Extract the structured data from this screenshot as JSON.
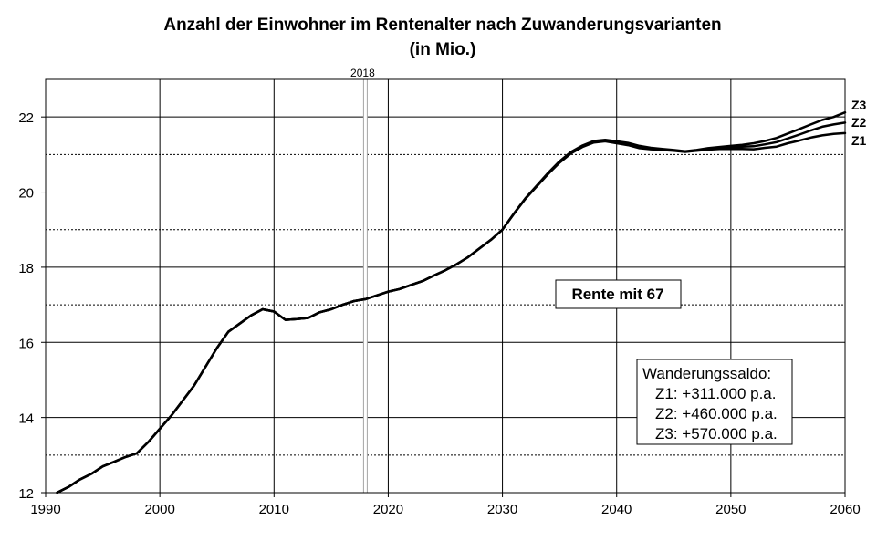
{
  "chart_data": {
    "type": "line",
    "title": "Anzahl der Einwohner im Rentenalter nach Zuwanderungsvarianten",
    "subtitle": "(in Mio.)",
    "xlim": [
      1990,
      2060
    ],
    "ylim": [
      12,
      23
    ],
    "x_ticks": [
      "1990",
      "2000",
      "2010",
      "2020",
      "2030",
      "2040",
      "2050",
      "2060"
    ],
    "y_ticks": [
      "12",
      "14",
      "16",
      "18",
      "20",
      "22"
    ],
    "grid": true,
    "marker": {
      "x": 2018,
      "label": "2018"
    },
    "series": [
      {
        "name": "Z1",
        "points": [
          [
            1991,
            12.0
          ],
          [
            1992,
            12.15
          ],
          [
            1993,
            12.35
          ],
          [
            1994,
            12.5
          ],
          [
            1995,
            12.7
          ],
          [
            1996,
            12.82
          ],
          [
            1997,
            12.95
          ],
          [
            1998,
            13.05
          ],
          [
            1999,
            13.35
          ],
          [
            2000,
            13.7
          ],
          [
            2001,
            14.05
          ],
          [
            2002,
            14.45
          ],
          [
            2003,
            14.85
          ],
          [
            2004,
            15.35
          ],
          [
            2005,
            15.85
          ],
          [
            2006,
            16.28
          ],
          [
            2007,
            16.5
          ],
          [
            2008,
            16.72
          ],
          [
            2009,
            16.88
          ],
          [
            2010,
            16.82
          ],
          [
            2011,
            16.6
          ],
          [
            2012,
            16.62
          ],
          [
            2013,
            16.65
          ],
          [
            2014,
            16.8
          ],
          [
            2015,
            16.88
          ],
          [
            2016,
            17.0
          ],
          [
            2017,
            17.1
          ],
          [
            2018,
            17.15
          ],
          [
            2019,
            17.25
          ],
          [
            2020,
            17.35
          ],
          [
            2021,
            17.42
          ],
          [
            2022,
            17.53
          ],
          [
            2023,
            17.63
          ],
          [
            2024,
            17.78
          ],
          [
            2025,
            17.92
          ],
          [
            2026,
            18.08
          ],
          [
            2027,
            18.27
          ],
          [
            2028,
            18.5
          ],
          [
            2029,
            18.73
          ],
          [
            2030,
            19.0
          ],
          [
            2031,
            19.42
          ],
          [
            2032,
            19.82
          ],
          [
            2033,
            20.15
          ],
          [
            2034,
            20.48
          ],
          [
            2035,
            20.78
          ],
          [
            2036,
            21.03
          ],
          [
            2037,
            21.2
          ],
          [
            2038,
            21.32
          ],
          [
            2039,
            21.35
          ],
          [
            2040,
            21.3
          ],
          [
            2041,
            21.25
          ],
          [
            2042,
            21.17
          ],
          [
            2043,
            21.14
          ],
          [
            2044,
            21.12
          ],
          [
            2045,
            21.1
          ],
          [
            2046,
            21.07
          ],
          [
            2047,
            21.1
          ],
          [
            2048,
            21.13
          ],
          [
            2049,
            21.15
          ],
          [
            2050,
            21.15
          ],
          [
            2051,
            21.15
          ],
          [
            2052,
            21.14
          ],
          [
            2053,
            21.18
          ],
          [
            2054,
            21.21
          ],
          [
            2055,
            21.3
          ],
          [
            2056,
            21.37
          ],
          [
            2057,
            21.45
          ],
          [
            2058,
            21.51
          ],
          [
            2059,
            21.55
          ],
          [
            2060,
            21.57
          ]
        ]
      },
      {
        "name": "Z2",
        "points": [
          [
            1991,
            12.0
          ],
          [
            1992,
            12.15
          ],
          [
            1993,
            12.35
          ],
          [
            1994,
            12.5
          ],
          [
            1995,
            12.7
          ],
          [
            1996,
            12.82
          ],
          [
            1997,
            12.95
          ],
          [
            1998,
            13.05
          ],
          [
            1999,
            13.35
          ],
          [
            2000,
            13.7
          ],
          [
            2001,
            14.05
          ],
          [
            2002,
            14.45
          ],
          [
            2003,
            14.85
          ],
          [
            2004,
            15.35
          ],
          [
            2005,
            15.85
          ],
          [
            2006,
            16.28
          ],
          [
            2007,
            16.5
          ],
          [
            2008,
            16.72
          ],
          [
            2009,
            16.88
          ],
          [
            2010,
            16.82
          ],
          [
            2011,
            16.6
          ],
          [
            2012,
            16.62
          ],
          [
            2013,
            16.65
          ],
          [
            2014,
            16.8
          ],
          [
            2015,
            16.88
          ],
          [
            2016,
            17.0
          ],
          [
            2017,
            17.1
          ],
          [
            2018,
            17.15
          ],
          [
            2019,
            17.25
          ],
          [
            2020,
            17.35
          ],
          [
            2021,
            17.42
          ],
          [
            2022,
            17.53
          ],
          [
            2023,
            17.63
          ],
          [
            2024,
            17.78
          ],
          [
            2025,
            17.92
          ],
          [
            2026,
            18.08
          ],
          [
            2027,
            18.27
          ],
          [
            2028,
            18.5
          ],
          [
            2029,
            18.73
          ],
          [
            2030,
            19.0
          ],
          [
            2031,
            19.42
          ],
          [
            2032,
            19.82
          ],
          [
            2033,
            20.16
          ],
          [
            2034,
            20.49
          ],
          [
            2035,
            20.8
          ],
          [
            2036,
            21.05
          ],
          [
            2037,
            21.22
          ],
          [
            2038,
            21.34
          ],
          [
            2039,
            21.37
          ],
          [
            2040,
            21.33
          ],
          [
            2041,
            21.28
          ],
          [
            2042,
            21.2
          ],
          [
            2043,
            21.16
          ],
          [
            2044,
            21.13
          ],
          [
            2045,
            21.11
          ],
          [
            2046,
            21.08
          ],
          [
            2047,
            21.11
          ],
          [
            2048,
            21.15
          ],
          [
            2049,
            21.18
          ],
          [
            2050,
            21.2
          ],
          [
            2051,
            21.21
          ],
          [
            2052,
            21.22
          ],
          [
            2053,
            21.27
          ],
          [
            2054,
            21.33
          ],
          [
            2055,
            21.43
          ],
          [
            2056,
            21.53
          ],
          [
            2057,
            21.64
          ],
          [
            2058,
            21.74
          ],
          [
            2059,
            21.8
          ],
          [
            2060,
            21.85
          ]
        ]
      },
      {
        "name": "Z3",
        "points": [
          [
            1991,
            12.0
          ],
          [
            1992,
            12.15
          ],
          [
            1993,
            12.35
          ],
          [
            1994,
            12.5
          ],
          [
            1995,
            12.7
          ],
          [
            1996,
            12.82
          ],
          [
            1997,
            12.95
          ],
          [
            1998,
            13.05
          ],
          [
            1999,
            13.35
          ],
          [
            2000,
            13.7
          ],
          [
            2001,
            14.05
          ],
          [
            2002,
            14.45
          ],
          [
            2003,
            14.85
          ],
          [
            2004,
            15.35
          ],
          [
            2005,
            15.85
          ],
          [
            2006,
            16.28
          ],
          [
            2007,
            16.5
          ],
          [
            2008,
            16.72
          ],
          [
            2009,
            16.88
          ],
          [
            2010,
            16.82
          ],
          [
            2011,
            16.6
          ],
          [
            2012,
            16.62
          ],
          [
            2013,
            16.65
          ],
          [
            2014,
            16.8
          ],
          [
            2015,
            16.88
          ],
          [
            2016,
            17.0
          ],
          [
            2017,
            17.1
          ],
          [
            2018,
            17.15
          ],
          [
            2019,
            17.25
          ],
          [
            2020,
            17.35
          ],
          [
            2021,
            17.42
          ],
          [
            2022,
            17.53
          ],
          [
            2023,
            17.63
          ],
          [
            2024,
            17.78
          ],
          [
            2025,
            17.92
          ],
          [
            2026,
            18.08
          ],
          [
            2027,
            18.27
          ],
          [
            2028,
            18.5
          ],
          [
            2029,
            18.73
          ],
          [
            2030,
            19.0
          ],
          [
            2031,
            19.43
          ],
          [
            2032,
            19.83
          ],
          [
            2033,
            20.17
          ],
          [
            2034,
            20.51
          ],
          [
            2035,
            20.82
          ],
          [
            2036,
            21.07
          ],
          [
            2037,
            21.24
          ],
          [
            2038,
            21.36
          ],
          [
            2039,
            21.39
          ],
          [
            2040,
            21.35
          ],
          [
            2041,
            21.31
          ],
          [
            2042,
            21.23
          ],
          [
            2043,
            21.18
          ],
          [
            2044,
            21.15
          ],
          [
            2045,
            21.12
          ],
          [
            2046,
            21.09
          ],
          [
            2047,
            21.12
          ],
          [
            2048,
            21.17
          ],
          [
            2049,
            21.2
          ],
          [
            2050,
            21.23
          ],
          [
            2051,
            21.26
          ],
          [
            2052,
            21.3
          ],
          [
            2053,
            21.36
          ],
          [
            2054,
            21.44
          ],
          [
            2055,
            21.56
          ],
          [
            2056,
            21.68
          ],
          [
            2057,
            21.8
          ],
          [
            2058,
            21.92
          ],
          [
            2059,
            22.0
          ],
          [
            2060,
            22.12
          ]
        ]
      }
    ],
    "annotations": {
      "rente": "Rente mit 67",
      "saldo_title": "Wanderungssaldo:",
      "saldo_lines": [
        "Z1: +311.000 p.a.",
        "Z2: +460.000 p.a.",
        "Z3: +570.000 p.a."
      ]
    }
  }
}
